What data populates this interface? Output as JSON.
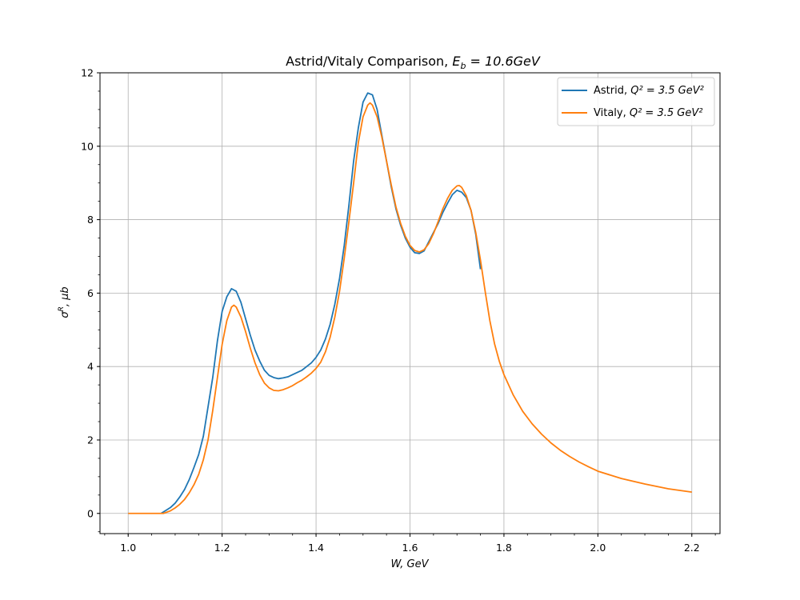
{
  "chart_data": {
    "type": "line",
    "title_main": "Astrid/Vitaly Comparison, ",
    "title_sym": "E",
    "title_sub": "b",
    "title_rest": " = 10.6GeV",
    "xlabel": "W, GeV",
    "ylabel_sym": "σ",
    "ylabel_sup": "R",
    "ylabel_rest": ", μb",
    "xlim": [
      0.94,
      2.26
    ],
    "ylim": [
      -0.55,
      12
    ],
    "xticks": [
      1.0,
      1.2,
      1.4,
      1.6,
      1.8,
      2.0,
      2.2
    ],
    "xtick_labels": [
      "1.0",
      "1.2",
      "1.4",
      "1.6",
      "1.8",
      "2.0",
      "2.2"
    ],
    "yticks": [
      0,
      2,
      4,
      6,
      8,
      10,
      12
    ],
    "ytick_labels": [
      "0",
      "2",
      "4",
      "6",
      "8",
      "10",
      "12"
    ],
    "grid": true,
    "legend_position": "upper-right",
    "series": [
      {
        "name_prefix": "Astrid, ",
        "name_math": "Q² = 3.5 GeV²",
        "color": "#1f77b4",
        "points": [
          [
            1.07,
            0.0
          ],
          [
            1.08,
            0.08
          ],
          [
            1.09,
            0.16
          ],
          [
            1.1,
            0.28
          ],
          [
            1.11,
            0.45
          ],
          [
            1.12,
            0.65
          ],
          [
            1.13,
            0.92
          ],
          [
            1.14,
            1.25
          ],
          [
            1.15,
            1.6
          ],
          [
            1.16,
            2.1
          ],
          [
            1.17,
            2.9
          ],
          [
            1.18,
            3.7
          ],
          [
            1.19,
            4.7
          ],
          [
            1.2,
            5.5
          ],
          [
            1.21,
            5.9
          ],
          [
            1.22,
            6.12
          ],
          [
            1.23,
            6.05
          ],
          [
            1.24,
            5.75
          ],
          [
            1.25,
            5.3
          ],
          [
            1.26,
            4.85
          ],
          [
            1.27,
            4.45
          ],
          [
            1.28,
            4.15
          ],
          [
            1.29,
            3.9
          ],
          [
            1.3,
            3.76
          ],
          [
            1.31,
            3.7
          ],
          [
            1.32,
            3.67
          ],
          [
            1.33,
            3.69
          ],
          [
            1.34,
            3.72
          ],
          [
            1.35,
            3.78
          ],
          [
            1.36,
            3.84
          ],
          [
            1.37,
            3.9
          ],
          [
            1.38,
            4.0
          ],
          [
            1.39,
            4.1
          ],
          [
            1.4,
            4.25
          ],
          [
            1.41,
            4.45
          ],
          [
            1.42,
            4.75
          ],
          [
            1.43,
            5.15
          ],
          [
            1.44,
            5.7
          ],
          [
            1.45,
            6.4
          ],
          [
            1.46,
            7.3
          ],
          [
            1.47,
            8.4
          ],
          [
            1.48,
            9.6
          ],
          [
            1.49,
            10.5
          ],
          [
            1.5,
            11.2
          ],
          [
            1.51,
            11.45
          ],
          [
            1.52,
            11.4
          ],
          [
            1.53,
            11.0
          ],
          [
            1.54,
            10.3
          ],
          [
            1.55,
            9.6
          ],
          [
            1.56,
            8.9
          ],
          [
            1.57,
            8.3
          ],
          [
            1.58,
            7.85
          ],
          [
            1.59,
            7.5
          ],
          [
            1.6,
            7.25
          ],
          [
            1.61,
            7.1
          ],
          [
            1.62,
            7.08
          ],
          [
            1.63,
            7.15
          ],
          [
            1.64,
            7.4
          ],
          [
            1.65,
            7.65
          ],
          [
            1.66,
            7.9
          ],
          [
            1.67,
            8.2
          ],
          [
            1.68,
            8.45
          ],
          [
            1.69,
            8.68
          ],
          [
            1.7,
            8.8
          ],
          [
            1.71,
            8.75
          ],
          [
            1.72,
            8.6
          ],
          [
            1.73,
            8.25
          ],
          [
            1.74,
            7.6
          ],
          [
            1.75,
            6.65
          ]
        ]
      },
      {
        "name_prefix": "Vitaly, ",
        "name_math": "Q² = 3.5 GeV²",
        "color": "#ff7f0e",
        "points": [
          [
            1.0,
            0.0
          ],
          [
            1.05,
            0.0
          ],
          [
            1.075,
            0.0
          ],
          [
            1.09,
            0.07
          ],
          [
            1.1,
            0.15
          ],
          [
            1.11,
            0.25
          ],
          [
            1.12,
            0.38
          ],
          [
            1.13,
            0.56
          ],
          [
            1.14,
            0.78
          ],
          [
            1.15,
            1.06
          ],
          [
            1.16,
            1.46
          ],
          [
            1.17,
            2.0
          ],
          [
            1.18,
            2.8
          ],
          [
            1.19,
            3.7
          ],
          [
            1.2,
            4.6
          ],
          [
            1.21,
            5.25
          ],
          [
            1.22,
            5.62
          ],
          [
            1.225,
            5.67
          ],
          [
            1.23,
            5.62
          ],
          [
            1.24,
            5.35
          ],
          [
            1.25,
            4.95
          ],
          [
            1.26,
            4.5
          ],
          [
            1.27,
            4.1
          ],
          [
            1.28,
            3.78
          ],
          [
            1.29,
            3.55
          ],
          [
            1.3,
            3.42
          ],
          [
            1.31,
            3.35
          ],
          [
            1.32,
            3.34
          ],
          [
            1.33,
            3.37
          ],
          [
            1.34,
            3.42
          ],
          [
            1.35,
            3.48
          ],
          [
            1.36,
            3.56
          ],
          [
            1.37,
            3.63
          ],
          [
            1.38,
            3.72
          ],
          [
            1.39,
            3.82
          ],
          [
            1.4,
            3.95
          ],
          [
            1.41,
            4.12
          ],
          [
            1.42,
            4.4
          ],
          [
            1.43,
            4.8
          ],
          [
            1.44,
            5.35
          ],
          [
            1.45,
            6.05
          ],
          [
            1.46,
            6.95
          ],
          [
            1.47,
            7.95
          ],
          [
            1.48,
            9.0
          ],
          [
            1.49,
            10.1
          ],
          [
            1.5,
            10.8
          ],
          [
            1.51,
            11.12
          ],
          [
            1.515,
            11.18
          ],
          [
            1.52,
            11.12
          ],
          [
            1.53,
            10.8
          ],
          [
            1.54,
            10.25
          ],
          [
            1.55,
            9.6
          ],
          [
            1.56,
            8.95
          ],
          [
            1.57,
            8.35
          ],
          [
            1.58,
            7.9
          ],
          [
            1.59,
            7.55
          ],
          [
            1.6,
            7.3
          ],
          [
            1.61,
            7.16
          ],
          [
            1.62,
            7.12
          ],
          [
            1.63,
            7.18
          ],
          [
            1.64,
            7.35
          ],
          [
            1.65,
            7.62
          ],
          [
            1.66,
            7.95
          ],
          [
            1.67,
            8.3
          ],
          [
            1.68,
            8.58
          ],
          [
            1.69,
            8.8
          ],
          [
            1.7,
            8.92
          ],
          [
            1.705,
            8.93
          ],
          [
            1.71,
            8.88
          ],
          [
            1.72,
            8.65
          ],
          [
            1.73,
            8.25
          ],
          [
            1.74,
            7.65
          ],
          [
            1.75,
            6.9
          ],
          [
            1.76,
            6.05
          ],
          [
            1.77,
            5.25
          ],
          [
            1.78,
            4.62
          ],
          [
            1.79,
            4.15
          ],
          [
            1.8,
            3.78
          ],
          [
            1.82,
            3.22
          ],
          [
            1.84,
            2.78
          ],
          [
            1.86,
            2.44
          ],
          [
            1.88,
            2.16
          ],
          [
            1.9,
            1.92
          ],
          [
            1.92,
            1.72
          ],
          [
            1.94,
            1.55
          ],
          [
            1.96,
            1.4
          ],
          [
            1.98,
            1.27
          ],
          [
            2.0,
            1.15
          ],
          [
            2.05,
            0.95
          ],
          [
            2.1,
            0.8
          ],
          [
            2.15,
            0.67
          ],
          [
            2.2,
            0.58
          ]
        ]
      }
    ]
  }
}
